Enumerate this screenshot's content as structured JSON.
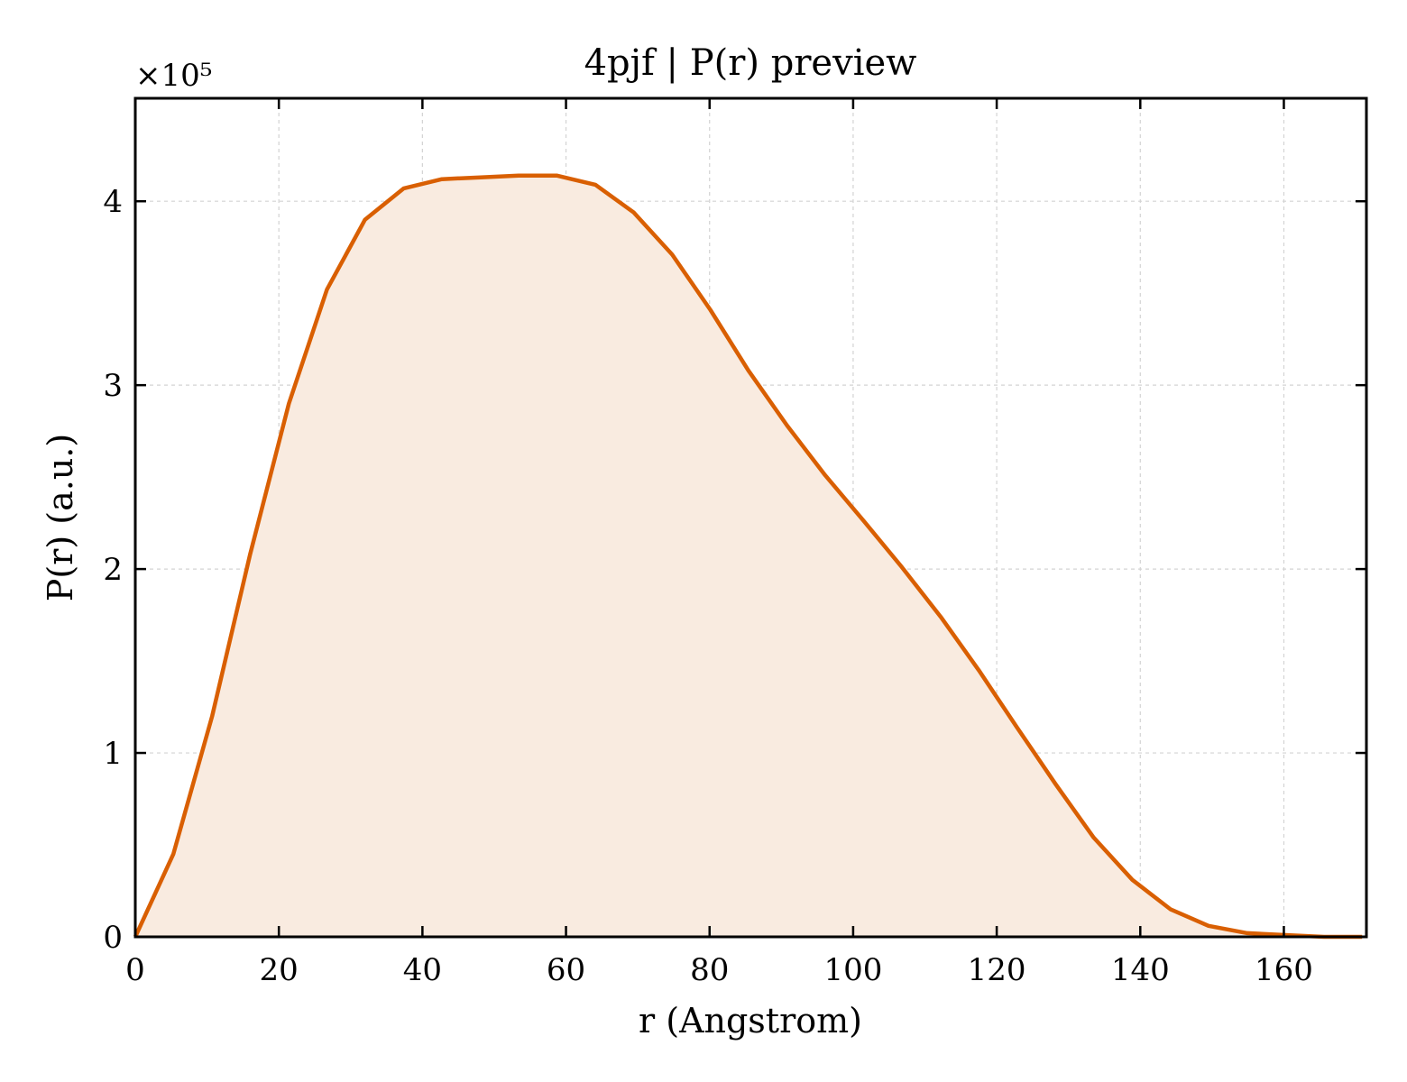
{
  "chart_data": {
    "type": "area",
    "title": "4pjf | P(r) preview",
    "xlabel": "r (Angstrom)",
    "ylabel": "P(r) (a.u.)",
    "y_multiplier_label": "×10⁵",
    "xlim": [
      0,
      171.5
    ],
    "ylim": [
      0,
      4.56
    ],
    "y_unit_scale": 100000,
    "xticks": [
      0,
      20,
      40,
      60,
      80,
      100,
      120,
      140,
      160
    ],
    "yticks": [
      0,
      1,
      2,
      3,
      4
    ],
    "grid": true,
    "line_color": "#d95f02",
    "fill_color": "#f9ebe0",
    "x": [
      0,
      5.3,
      10.7,
      16.0,
      21.4,
      26.7,
      32.0,
      37.4,
      42.7,
      48.1,
      53.4,
      58.7,
      64.1,
      69.4,
      74.8,
      80.1,
      85.4,
      90.8,
      96.1,
      101.5,
      106.8,
      112.2,
      117.5,
      122.8,
      128.2,
      133.5,
      138.9,
      144.2,
      149.5,
      154.9,
      160.2,
      165.6,
      170.9
    ],
    "y": [
      0,
      0.45,
      1.2,
      2.08,
      2.9,
      3.52,
      3.9,
      4.07,
      4.12,
      4.13,
      4.14,
      4.14,
      4.09,
      3.94,
      3.71,
      3.41,
      3.08,
      2.78,
      2.51,
      2.26,
      2.01,
      1.74,
      1.45,
      1.14,
      0.83,
      0.54,
      0.31,
      0.15,
      0.06,
      0.02,
      0.01,
      0.0,
      0.0
    ]
  }
}
